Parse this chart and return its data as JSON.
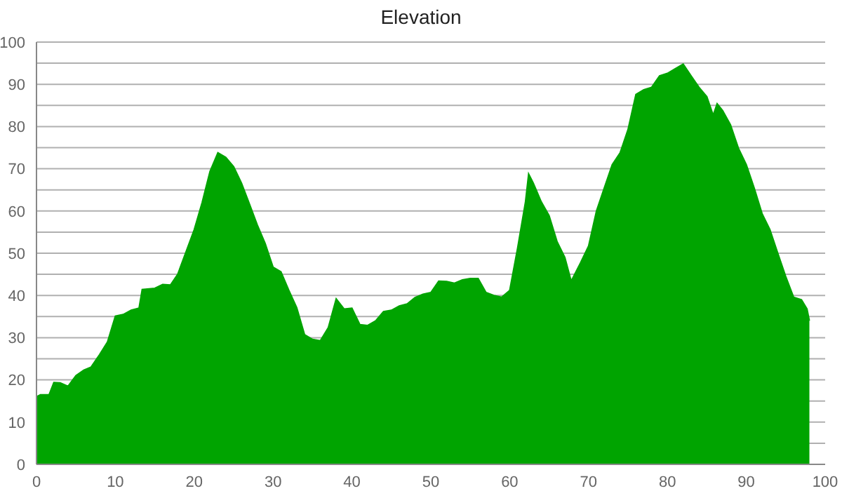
{
  "chart_data": {
    "type": "area",
    "title": "Elevation",
    "x": [
      0,
      0.5,
      1,
      1.6,
      2.2,
      3,
      4,
      5,
      6,
      6.9,
      8,
      9,
      10,
      11,
      12,
      13,
      13.4,
      15,
      16,
      17,
      17.9,
      20,
      21,
      22,
      23,
      24,
      25,
      26,
      27,
      28,
      29,
      30,
      31,
      32,
      33,
      34,
      35,
      36,
      37,
      38,
      39,
      40,
      41,
      42,
      43,
      44,
      45,
      46,
      47,
      48,
      49,
      50,
      51,
      52,
      53,
      54,
      55,
      56,
      57,
      58,
      59,
      60,
      61,
      62,
      62.4,
      63,
      64,
      65,
      66,
      67,
      67.8,
      69,
      70,
      71,
      72,
      73,
      74,
      75,
      76,
      77,
      78,
      79,
      80,
      81,
      82,
      83,
      84,
      85,
      85.8,
      86.3,
      87,
      88,
      89,
      90,
      91,
      92,
      93,
      94,
      95,
      96,
      97,
      97.7,
      98
    ],
    "series": [
      {
        "color": "#00a400",
        "values": [
          16,
          16.5,
          16.5,
          16.5,
          19.4,
          19.3,
          18.5,
          21,
          22.3,
          23,
          26,
          29,
          35.1,
          35.5,
          36.5,
          37,
          41.4,
          41.7,
          42.6,
          42.5,
          45,
          55.6,
          62,
          69.4,
          73.8,
          72.7,
          70.5,
          66.6,
          61.7,
          56.7,
          52.3,
          46.7,
          45.6,
          41.2,
          37.1,
          30.7,
          29.6,
          29.3,
          32.4,
          39.2,
          36.8,
          37,
          33.1,
          32.9,
          34,
          36.2,
          36.5,
          37.5,
          38,
          39.5,
          40.3,
          40.7,
          43.4,
          43.3,
          42.9,
          43.7,
          44,
          44,
          40.7,
          40,
          39.6,
          41.2,
          51.2,
          62.2,
          68.8,
          66.6,
          62.2,
          58.9,
          52.8,
          49,
          43.4,
          47.8,
          51.7,
          60,
          65.5,
          71,
          73.8,
          79.3,
          87.6,
          88.7,
          89.3,
          92,
          92.6,
          93.7,
          94.8,
          92,
          89.3,
          87.1,
          82.7,
          85.4,
          83.8,
          80.4,
          74.9,
          71,
          65.5,
          59.4,
          55.6,
          50,
          44.5,
          39.6,
          39,
          36.8,
          34
        ]
      }
    ],
    "xlim": [
      0,
      100
    ],
    "xticks": [
      0,
      10,
      20,
      30,
      40,
      50,
      60,
      70,
      80,
      90,
      100
    ],
    "ylim": [
      0,
      100
    ],
    "yticks": [
      0,
      {
        "value": 5,
        "label": null
      },
      10,
      {
        "value": 15,
        "label": null
      },
      20,
      {
        "value": 25,
        "label": null
      },
      30,
      {
        "value": 35,
        "label": null
      },
      40,
      {
        "value": 45,
        "label": null
      },
      50,
      {
        "value": 55,
        "label": null
      },
      60,
      {
        "value": 65,
        "label": null
      },
      70,
      {
        "value": 75,
        "label": null
      },
      80,
      {
        "value": 85,
        "label": null
      },
      90,
      {
        "value": 95,
        "label": null
      },
      100
    ],
    "grid": "y"
  }
}
